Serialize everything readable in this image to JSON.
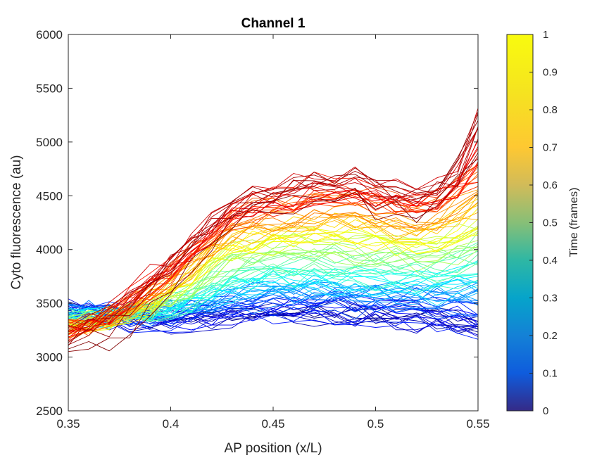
{
  "chart_data": {
    "type": "line",
    "title": "Channel 1",
    "xlabel": "AP position (x/L)",
    "ylabel": "Cyto fluorescence (au)",
    "xlim": [
      0.35,
      0.55
    ],
    "ylim": [
      2500,
      6000
    ],
    "xticks": [
      "0.35",
      "0.4",
      "0.45",
      "0.5",
      "0.55"
    ],
    "yticks": [
      "2500",
      "3000",
      "3500",
      "4000",
      "4500",
      "5000",
      "5500",
      "6000"
    ],
    "grid": false,
    "colormap": "jet",
    "colorbar": {
      "label": "Time (frames)",
      "range": [
        0,
        1
      ],
      "ticks": [
        "0",
        "0.1",
        "0.2",
        "0.3",
        "0.4",
        "0.5",
        "0.6",
        "0.7",
        "0.8",
        "0.9",
        "1"
      ]
    },
    "x": [
      0.35,
      0.36,
      0.37,
      0.38,
      0.39,
      0.4,
      0.41,
      0.42,
      0.43,
      0.44,
      0.45,
      0.46,
      0.47,
      0.48,
      0.49,
      0.5,
      0.51,
      0.52,
      0.53,
      0.54,
      0.55
    ],
    "representative_series": [
      {
        "time": 0.0,
        "values": [
          3450,
          3420,
          3380,
          3350,
          3330,
          3320,
          3330,
          3350,
          3370,
          3380,
          3390,
          3380,
          3400,
          3390,
          3380,
          3370,
          3360,
          3340,
          3330,
          3310,
          3250
        ]
      },
      {
        "time": 0.15,
        "values": [
          3430,
          3410,
          3390,
          3370,
          3360,
          3360,
          3380,
          3410,
          3440,
          3460,
          3470,
          3460,
          3480,
          3470,
          3460,
          3450,
          3440,
          3430,
          3420,
          3400,
          3350
        ]
      },
      {
        "time": 0.3,
        "values": [
          3400,
          3390,
          3380,
          3380,
          3400,
          3420,
          3460,
          3520,
          3560,
          3580,
          3600,
          3590,
          3610,
          3600,
          3590,
          3580,
          3570,
          3560,
          3570,
          3580,
          3600
        ]
      },
      {
        "time": 0.45,
        "values": [
          3350,
          3340,
          3350,
          3390,
          3430,
          3470,
          3560,
          3680,
          3760,
          3800,
          3820,
          3820,
          3840,
          3830,
          3820,
          3800,
          3790,
          3780,
          3790,
          3820,
          3900
        ]
      },
      {
        "time": 0.55,
        "values": [
          3320,
          3310,
          3340,
          3400,
          3460,
          3530,
          3650,
          3800,
          3900,
          3950,
          3980,
          3990,
          4010,
          4000,
          3990,
          3970,
          3960,
          3950,
          3970,
          4010,
          4100
        ]
      },
      {
        "time": 0.65,
        "values": [
          3280,
          3290,
          3350,
          3430,
          3520,
          3620,
          3770,
          3950,
          4050,
          4110,
          4150,
          4170,
          4200,
          4190,
          4180,
          4160,
          4140,
          4120,
          4160,
          4220,
          4350
        ]
      },
      {
        "time": 0.75,
        "values": [
          3260,
          3300,
          3380,
          3480,
          3600,
          3720,
          3880,
          4080,
          4200,
          4280,
          4320,
          4350,
          4400,
          4390,
          4380,
          4350,
          4330,
          4300,
          4350,
          4450,
          4600
        ]
      },
      {
        "time": 0.85,
        "values": [
          3250,
          3310,
          3400,
          3520,
          3680,
          3820,
          3980,
          4180,
          4320,
          4400,
          4450,
          4500,
          4560,
          4560,
          4550,
          4520,
          4490,
          4460,
          4500,
          4620,
          4800
        ]
      },
      {
        "time": 0.95,
        "values": [
          3240,
          3330,
          3430,
          3570,
          3760,
          3900,
          4060,
          4270,
          4400,
          4480,
          4530,
          4580,
          4640,
          4640,
          4630,
          4600,
          4570,
          4550,
          4600,
          4720,
          5300
        ]
      },
      {
        "time": 1.0,
        "values": [
          3000,
          3080,
          3060,
          3200,
          3420,
          3620,
          3820,
          4050,
          4250,
          4400,
          4380,
          4420,
          4500,
          4480,
          4520,
          4360,
          4350,
          4280,
          4400,
          4750,
          4850
        ]
      }
    ]
  }
}
